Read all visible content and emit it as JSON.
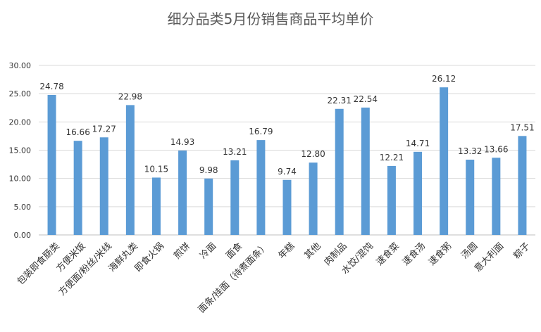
{
  "chart_data": {
    "type": "bar",
    "title": "细分品类5月份销售商品平均单价",
    "xlabel": "",
    "ylabel": "",
    "ylim": [
      0,
      30
    ],
    "yticks": [
      "0.00",
      "5.00",
      "10.00",
      "15.00",
      "20.00",
      "25.00",
      "30.00"
    ],
    "grid": true,
    "legend": "none",
    "bar_color": "#5b9bd5",
    "categories": [
      "包装即食肠类",
      "方便米饭",
      "方便面/粉丝/米线",
      "海鲜丸类",
      "即食火锅",
      "煎饼",
      "冷面",
      "面食",
      "面条/挂面（待煮面条）",
      "年糕",
      "其他",
      "肉制品",
      "水饺/混饨",
      "速食菜",
      "速食汤",
      "速食粥",
      "汤圆",
      "意大利面",
      "粽子"
    ],
    "values": [
      24.78,
      16.66,
      17.27,
      22.98,
      10.15,
      14.93,
      9.98,
      13.21,
      16.79,
      9.74,
      12.8,
      22.31,
      22.54,
      12.21,
      14.71,
      26.12,
      13.32,
      13.66,
      17.51
    ],
    "value_labels": [
      "24.78",
      "16.66",
      "17.27",
      "22.98",
      "10.15",
      "14.93",
      "9.98",
      "13.21",
      "16.79",
      "9.74",
      "12.80",
      "22.31",
      "22.54",
      "12.21",
      "14.71",
      "26.12",
      "13.32",
      "13.66",
      "17.51"
    ]
  }
}
